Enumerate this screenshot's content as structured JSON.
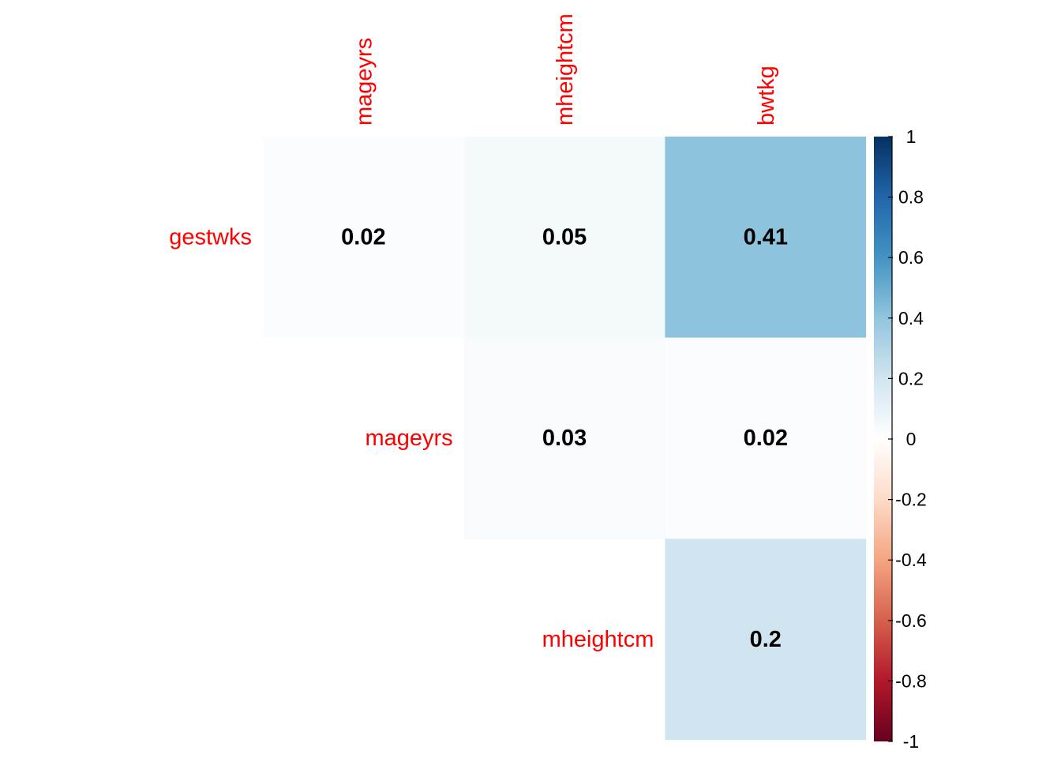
{
  "chart_data": {
    "type": "heatmap",
    "variables": [
      "gestwks",
      "mageyrs",
      "mheightcm",
      "bwtkg"
    ],
    "row_labels": [
      "gestwks",
      "mageyrs",
      "mheightcm"
    ],
    "col_labels": [
      "mageyrs",
      "mheightcm",
      "bwtkg"
    ],
    "cells": [
      {
        "row": "gestwks",
        "col": "mageyrs",
        "value": 0.02,
        "label": "0.02"
      },
      {
        "row": "gestwks",
        "col": "mheightcm",
        "value": 0.05,
        "label": "0.05"
      },
      {
        "row": "gestwks",
        "col": "bwtkg",
        "value": 0.41,
        "label": "0.41"
      },
      {
        "row": "mageyrs",
        "col": "mheightcm",
        "value": 0.03,
        "label": "0.03"
      },
      {
        "row": "mageyrs",
        "col": "bwtkg",
        "value": 0.02,
        "label": "0.02"
      },
      {
        "row": "mheightcm",
        "col": "bwtkg",
        "value": 0.2,
        "label": "0.2"
      }
    ],
    "colorbar": {
      "range": [
        -1,
        1
      ],
      "ticks": [
        "1",
        "0.8",
        "0.6",
        "0.4",
        "0.2",
        "0",
        "-0.2",
        "-0.4",
        "-0.6",
        "-0.8",
        "-1"
      ]
    },
    "colors": {
      "label": "#ff0000",
      "value_text": "#000000",
      "scale_low": "#67001F",
      "scale_mid": "#FFFFFF",
      "scale_high": "#053061"
    }
  }
}
